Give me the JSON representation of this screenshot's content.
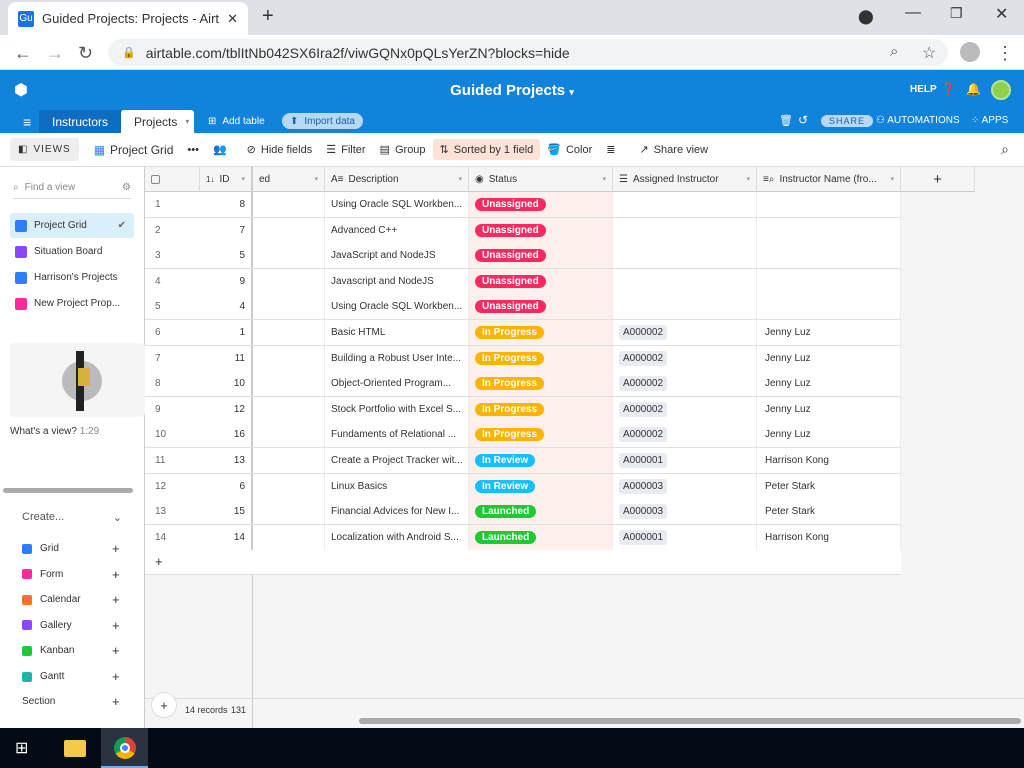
{
  "browser": {
    "tab_title": "Guided Projects: Projects - Airtab",
    "favicon": "Gu",
    "url": "airtable.com/tblItNb042SX6Ira2f/viwGQNx0pQLsYerZN?blocks=hide"
  },
  "header": {
    "base_title": "Guided Projects",
    "help": "HELP",
    "share": "SHARE",
    "automations": "AUTOMATIONS",
    "apps": "APPS",
    "tables": [
      "Instructors",
      "Projects"
    ],
    "add_table": "Add table",
    "import_data": "Import data"
  },
  "toolbar": {
    "views": "VIEWS",
    "view_name": "Project Grid",
    "hide_fields": "Hide fields",
    "filter": "Filter",
    "group": "Group",
    "sorted": "Sorted by 1 field",
    "color": "Color",
    "share_view": "Share view"
  },
  "sidebar": {
    "find_placeholder": "Find a view",
    "views": [
      {
        "label": "Project Grid",
        "color": "#2d7ff9"
      },
      {
        "label": "Situation Board",
        "color": "#8b46ff"
      },
      {
        "label": "Harrison's Projects",
        "color": "#2d7ff9"
      },
      {
        "label": "New Project Prop...",
        "color": "#f82b9b"
      }
    ],
    "video_caption": "What's a view?",
    "video_duration": "1:29",
    "create": "Create...",
    "create_items": [
      {
        "label": "Grid",
        "color": "#2d7ff9"
      },
      {
        "label": "Form",
        "color": "#f82b9b"
      },
      {
        "label": "Calendar",
        "color": "#ff6f2c"
      },
      {
        "label": "Gallery",
        "color": "#8b46ff"
      },
      {
        "label": "Kanban",
        "color": "#20c933"
      },
      {
        "label": "Gantt",
        "color": "#20b5a8"
      }
    ],
    "section": "Section"
  },
  "grid": {
    "columns": {
      "id": "ID",
      "partial": "ed",
      "description": "Description",
      "status": "Status",
      "assigned": "Assigned Instructor",
      "instructor_name": "Instructor Name (fro..."
    },
    "status_colors": {
      "Unassigned": "#f82b60",
      "In Progress": "#fcb400",
      "In Review": "#18bfff",
      "Launched": "#20c933"
    },
    "rows": [
      {
        "n": "1",
        "id": "8",
        "desc": "Using Oracle SQL Workben...",
        "status": "Unassigned",
        "assigned": "",
        "name": ""
      },
      {
        "n": "2",
        "id": "7",
        "desc": "Advanced C++",
        "status": "Unassigned",
        "assigned": "",
        "name": ""
      },
      {
        "n": "3",
        "id": "5",
        "desc": "JavaScript and NodeJS",
        "status": "Unassigned",
        "assigned": "",
        "name": ""
      },
      {
        "n": "4",
        "id": "9",
        "desc": "Javascript and NodeJS",
        "status": "Unassigned",
        "assigned": "",
        "name": ""
      },
      {
        "n": "5",
        "id": "4",
        "desc": "Using Oracle SQL Workben...",
        "status": "Unassigned",
        "assigned": "",
        "name": ""
      },
      {
        "n": "6",
        "id": "1",
        "desc": "Basic HTML",
        "status": "In Progress",
        "assigned": "A000002",
        "name": "Jenny Luz"
      },
      {
        "n": "7",
        "id": "11",
        "desc": "Building a Robust User Inte...",
        "status": "In Progress",
        "assigned": "A000002",
        "name": "Jenny Luz"
      },
      {
        "n": "8",
        "id": "10",
        "desc": "Object-Oriented Program...",
        "status": "In Progress",
        "assigned": "A000002",
        "name": "Jenny Luz"
      },
      {
        "n": "9",
        "id": "12",
        "desc": "Stock Portfolio with Excel S...",
        "status": "In Progress",
        "assigned": "A000002",
        "name": "Jenny Luz"
      },
      {
        "n": "10",
        "id": "16",
        "desc": "Fundaments of Relational ...",
        "status": "In Progress",
        "assigned": "A000002",
        "name": "Jenny Luz"
      },
      {
        "n": "11",
        "id": "13",
        "desc": "Create a Project Tracker wit...",
        "status": "In Review",
        "assigned": "A000001",
        "name": "Harrison Kong"
      },
      {
        "n": "12",
        "id": "6",
        "desc": "Linux Basics",
        "status": "In Review",
        "assigned": "A000003",
        "name": "Peter Stark"
      },
      {
        "n": "13",
        "id": "15",
        "desc": "Financial Advices for New I...",
        "status": "Launched",
        "assigned": "A000003",
        "name": "Peter Stark"
      },
      {
        "n": "14",
        "id": "14",
        "desc": "Localization with Android S...",
        "status": "Launched",
        "assigned": "A000001",
        "name": "Harrison Kong"
      }
    ],
    "footer_count": "14 records",
    "footer_sum": "131"
  }
}
